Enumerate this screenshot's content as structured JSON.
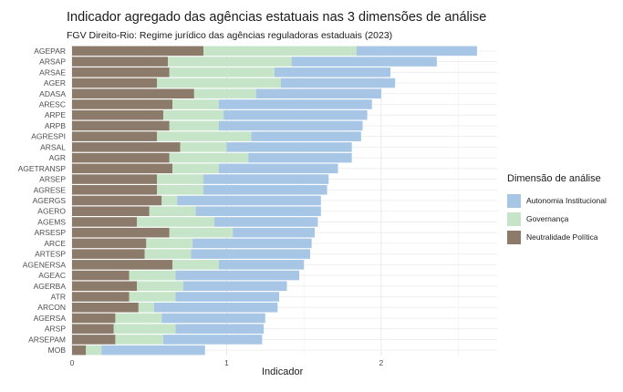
{
  "title": "Indicador agregado das agências estatuais nas 3 dimensões de análise",
  "subtitle": "FGV Direito-Rio: Regime jurídico das agências reguladoras estaduais (2023)",
  "chart_data": {
    "type": "bar",
    "orientation": "horizontal",
    "stacked": true,
    "xlabel": "Indicador",
    "ylabel": "",
    "xlim": [
      0,
      2.75
    ],
    "xticks": [
      0,
      1,
      2
    ],
    "grid": true,
    "legend_title": "Dimensão de análise",
    "legend_position": "right",
    "categories": [
      "AGEPAR",
      "ARSAP",
      "ARSAE",
      "AGER",
      "ADASA",
      "ARESC",
      "ARPE",
      "ARPB",
      "AGRESPI",
      "ARSAL",
      "AGR",
      "AGETRANSP",
      "ARSEP",
      "AGRESE",
      "AGERGS",
      "AGERO",
      "AGEMS",
      "ARSESP",
      "ARCE",
      "ARTESP",
      "AGENERSA",
      "AGEAC",
      "AGERBA",
      "ATR",
      "ARCON",
      "AGERSA",
      "ARSP",
      "ARSEPAM",
      "MOB"
    ],
    "series": [
      {
        "name": "Neutralidade Política",
        "color": "#8c7b6b",
        "values": [
          0.85,
          0.62,
          0.63,
          0.55,
          0.79,
          0.65,
          0.59,
          0.63,
          0.55,
          0.7,
          0.63,
          0.65,
          0.55,
          0.55,
          0.58,
          0.5,
          0.42,
          0.63,
          0.48,
          0.47,
          0.65,
          0.37,
          0.42,
          0.37,
          0.43,
          0.28,
          0.27,
          0.28,
          0.09
        ]
      },
      {
        "name": "Governança",
        "color": "#c6e5c8",
        "values": [
          0.99,
          0.8,
          0.68,
          0.8,
          0.4,
          0.3,
          0.39,
          0.32,
          0.61,
          0.3,
          0.51,
          0.3,
          0.3,
          0.3,
          0.1,
          0.3,
          0.5,
          0.41,
          0.3,
          0.3,
          0.3,
          0.3,
          0.3,
          0.3,
          0.1,
          0.3,
          0.4,
          0.31,
          0.1
        ]
      },
      {
        "name": "Autonomia Institucional",
        "color": "#a7c6e6",
        "values": [
          0.78,
          0.94,
          0.75,
          0.74,
          0.81,
          0.99,
          0.93,
          0.93,
          0.71,
          0.81,
          0.67,
          0.77,
          0.81,
          0.8,
          0.93,
          0.81,
          0.67,
          0.53,
          0.77,
          0.77,
          0.55,
          0.8,
          0.67,
          0.67,
          0.8,
          0.67,
          0.57,
          0.64,
          0.67
        ]
      }
    ]
  },
  "legend_order": [
    "Autonomia Institucional",
    "Governança",
    "Neutralidade Política"
  ]
}
